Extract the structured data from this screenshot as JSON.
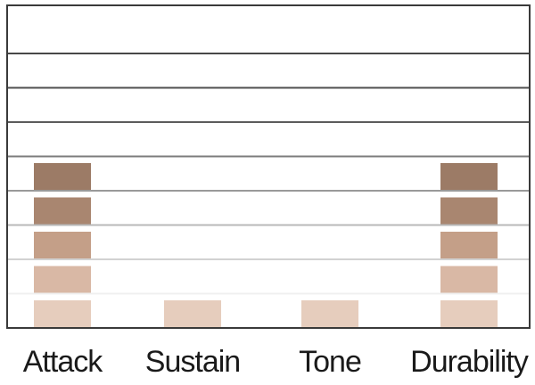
{
  "chart_data": {
    "type": "bar",
    "categories": [
      "Attack",
      "Sustain",
      "Tone",
      "Durability"
    ],
    "values": [
      5,
      1,
      1,
      5
    ],
    "ylim": [
      0,
      9
    ],
    "grid": true,
    "segment_colors": [
      "#e6cdbd",
      "#d9b8a5",
      "#c49f88",
      "#a98670",
      "#9c7b66"
    ],
    "grid_colors": [
      "#f0f0f0",
      "#d2d2d2",
      "#b8b8b8",
      "#9a9a9a",
      "#7c7c7c",
      "#5c5c5c",
      "#505050",
      "#474747"
    ]
  }
}
